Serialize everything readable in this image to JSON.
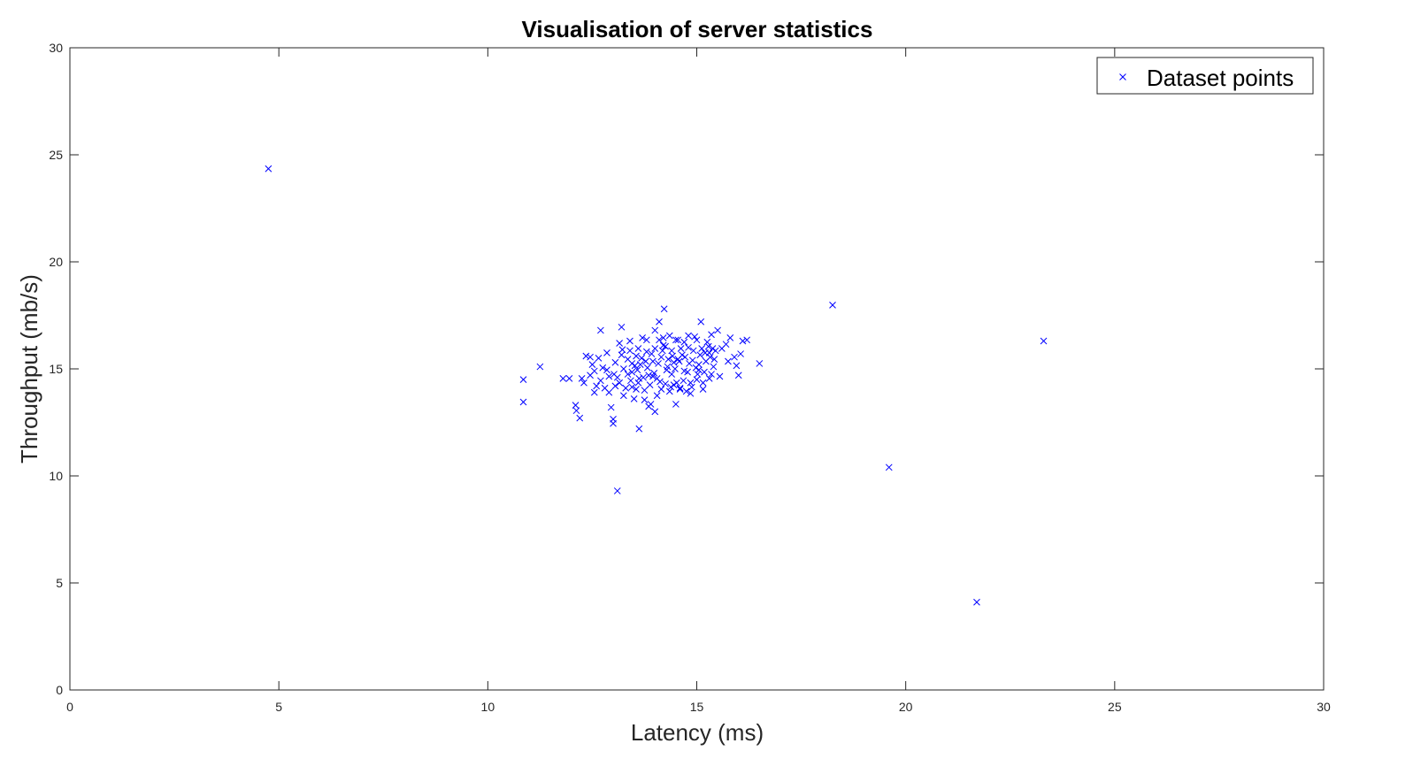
{
  "chart_data": {
    "type": "scatter",
    "title": "Visualisation of server statistics",
    "xlabel": "Latency (ms)",
    "ylabel": "Throughput (mb/s)",
    "xlim": [
      0,
      30
    ],
    "ylim": [
      0,
      30
    ],
    "xticks": [
      "0",
      "5",
      "10",
      "15",
      "20",
      "25",
      "30"
    ],
    "yticks": [
      "0",
      "5",
      "10",
      "15",
      "20",
      "25",
      "30"
    ],
    "grid": false,
    "legend_position": "top-right",
    "marker": "x",
    "series_color": "#0000ff",
    "series": [
      {
        "name": "Dataset points",
        "points": [
          [
            4.75,
            24.35
          ],
          [
            18.25,
            17.98
          ],
          [
            23.3,
            16.3
          ],
          [
            19.6,
            10.4
          ],
          [
            21.7,
            4.1
          ],
          [
            13.1,
            9.3
          ],
          [
            10.85,
            14.5
          ],
          [
            10.85,
            13.45
          ],
          [
            11.25,
            15.1
          ],
          [
            11.8,
            14.55
          ],
          [
            11.95,
            14.55
          ],
          [
            12.1,
            13.3
          ],
          [
            12.12,
            13.05
          ],
          [
            12.2,
            12.7
          ],
          [
            12.3,
            14.35
          ],
          [
            12.35,
            15.6
          ],
          [
            12.45,
            14.7
          ],
          [
            12.5,
            15.2
          ],
          [
            12.55,
            14.9
          ],
          [
            12.6,
            14.2
          ],
          [
            12.65,
            15.5
          ],
          [
            12.7,
            16.8
          ],
          [
            12.75,
            15.05
          ],
          [
            12.8,
            14.1
          ],
          [
            12.85,
            15.75
          ],
          [
            12.9,
            13.9
          ],
          [
            12.95,
            13.2
          ],
          [
            13.0,
            12.65
          ],
          [
            13.0,
            12.45
          ],
          [
            13.02,
            14.75
          ],
          [
            13.05,
            15.3
          ],
          [
            13.1,
            14.6
          ],
          [
            13.15,
            16.2
          ],
          [
            13.2,
            16.95
          ],
          [
            13.22,
            15.9
          ],
          [
            13.3,
            14.1
          ],
          [
            13.35,
            15.45
          ],
          [
            13.4,
            16.3
          ],
          [
            13.45,
            14.85
          ],
          [
            13.5,
            13.6
          ],
          [
            13.55,
            15.6
          ],
          [
            13.6,
            14.35
          ],
          [
            13.62,
            12.2
          ],
          [
            13.65,
            15.2
          ],
          [
            13.7,
            16.45
          ],
          [
            13.75,
            14.0
          ],
          [
            13.8,
            15.8
          ],
          [
            13.85,
            14.7
          ],
          [
            13.9,
            13.35
          ],
          [
            13.95,
            15.35
          ],
          [
            14.0,
            16.8
          ],
          [
            14.0,
            13.0
          ],
          [
            14.05,
            14.55
          ],
          [
            14.1,
            17.2
          ],
          [
            14.15,
            15.55
          ],
          [
            14.2,
            16.1
          ],
          [
            14.22,
            17.8
          ],
          [
            14.25,
            14.3
          ],
          [
            14.3,
            15.1
          ],
          [
            14.35,
            16.55
          ],
          [
            14.4,
            14.75
          ],
          [
            14.45,
            15.3
          ],
          [
            14.5,
            13.35
          ],
          [
            14.55,
            16.35
          ],
          [
            14.6,
            14.1
          ],
          [
            14.65,
            15.65
          ],
          [
            14.7,
            14.9
          ],
          [
            14.8,
            16.0
          ],
          [
            14.85,
            13.85
          ],
          [
            14.9,
            15.4
          ],
          [
            14.95,
            16.5
          ],
          [
            15.0,
            14.5
          ],
          [
            15.05,
            15.2
          ],
          [
            15.1,
            17.2
          ],
          [
            15.15,
            14.05
          ],
          [
            15.2,
            15.75
          ],
          [
            15.25,
            16.25
          ],
          [
            15.3,
            14.55
          ],
          [
            15.35,
            16.6
          ],
          [
            15.4,
            15.1
          ],
          [
            15.45,
            15.85
          ],
          [
            15.5,
            16.8
          ],
          [
            15.55,
            14.65
          ],
          [
            15.6,
            15.95
          ],
          [
            15.7,
            16.15
          ],
          [
            15.75,
            15.35
          ],
          [
            15.8,
            16.45
          ],
          [
            15.9,
            15.55
          ],
          [
            15.95,
            15.15
          ],
          [
            16.0,
            14.7
          ],
          [
            16.05,
            15.7
          ],
          [
            16.1,
            16.3
          ],
          [
            16.2,
            16.35
          ],
          [
            16.5,
            15.25
          ],
          [
            12.45,
            15.55
          ],
          [
            12.9,
            14.65
          ],
          [
            13.05,
            14.2
          ],
          [
            13.25,
            15.0
          ],
          [
            13.42,
            14.45
          ],
          [
            13.52,
            15.15
          ],
          [
            13.58,
            14.95
          ],
          [
            13.68,
            15.5
          ],
          [
            13.72,
            14.6
          ],
          [
            13.82,
            15.05
          ],
          [
            13.88,
            14.25
          ],
          [
            13.92,
            15.7
          ],
          [
            13.98,
            14.8
          ],
          [
            14.08,
            15.25
          ],
          [
            14.12,
            14.4
          ],
          [
            14.18,
            15.85
          ],
          [
            14.28,
            14.95
          ],
          [
            14.32,
            15.45
          ],
          [
            14.38,
            14.15
          ],
          [
            14.42,
            15.6
          ],
          [
            14.48,
            15.0
          ],
          [
            14.52,
            14.35
          ],
          [
            14.58,
            15.35
          ],
          [
            14.62,
            15.95
          ],
          [
            14.68,
            14.45
          ],
          [
            14.72,
            15.55
          ],
          [
            14.78,
            14.85
          ],
          [
            14.82,
            15.25
          ],
          [
            14.88,
            14.15
          ],
          [
            14.92,
            15.85
          ],
          [
            14.98,
            15.05
          ],
          [
            15.02,
            14.75
          ],
          [
            15.08,
            15.65
          ],
          [
            15.12,
            15.95
          ],
          [
            15.18,
            14.85
          ],
          [
            15.22,
            15.35
          ],
          [
            15.28,
            16.05
          ],
          [
            15.32,
            15.55
          ],
          [
            15.38,
            15.95
          ],
          [
            15.42,
            15.45
          ],
          [
            13.35,
            14.75
          ],
          [
            13.45,
            15.25
          ],
          [
            13.62,
            14.55
          ],
          [
            13.78,
            15.35
          ],
          [
            13.95,
            14.65
          ],
          [
            14.1,
            16.35
          ],
          [
            14.25,
            16.05
          ],
          [
            14.4,
            15.85
          ],
          [
            14.55,
            15.45
          ],
          [
            14.7,
            16.25
          ],
          [
            12.7,
            14.45
          ],
          [
            12.85,
            14.95
          ],
          [
            13.15,
            14.35
          ],
          [
            13.55,
            14.05
          ],
          [
            13.75,
            13.55
          ],
          [
            14.05,
            13.75
          ],
          [
            14.35,
            13.95
          ],
          [
            14.6,
            14.05
          ],
          [
            14.85,
            14.35
          ],
          [
            15.15,
            14.35
          ],
          [
            12.25,
            14.55
          ],
          [
            12.55,
            13.9
          ],
          [
            13.25,
            13.75
          ],
          [
            13.45,
            14.15
          ],
          [
            13.85,
            13.25
          ],
          [
            14.15,
            14.05
          ],
          [
            14.45,
            14.25
          ],
          [
            14.75,
            13.95
          ],
          [
            15.05,
            14.95
          ],
          [
            15.35,
            14.75
          ],
          [
            13.2,
            15.65
          ],
          [
            13.4,
            15.85
          ],
          [
            13.6,
            15.95
          ],
          [
            13.8,
            16.35
          ],
          [
            14.0,
            15.95
          ],
          [
            14.2,
            16.45
          ],
          [
            14.5,
            16.35
          ],
          [
            14.8,
            16.55
          ],
          [
            15.0,
            16.35
          ],
          [
            15.3,
            15.75
          ]
        ]
      }
    ]
  }
}
